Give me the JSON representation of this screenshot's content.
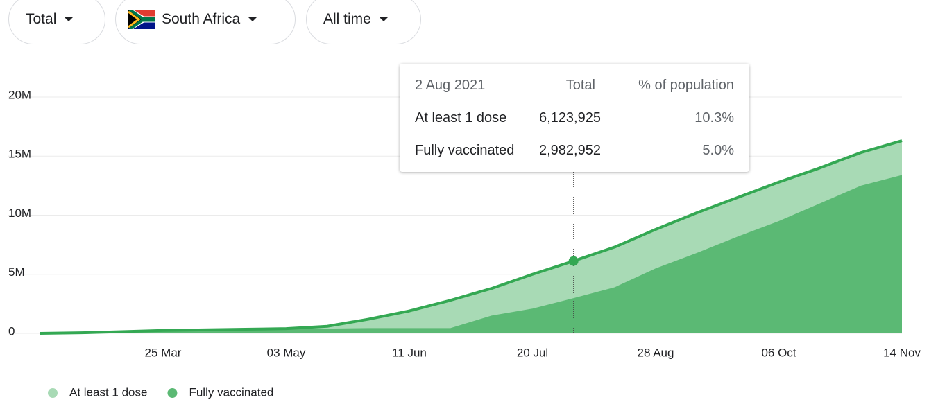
{
  "filters": [
    "Total",
    "South Africa",
    "All time"
  ],
  "chart_data": {
    "type": "area",
    "categories": [
      null,
      null,
      null,
      "25 Mar",
      null,
      null,
      "03 May",
      null,
      null,
      "11 Jun",
      null,
      null,
      "20 Jul",
      null,
      null,
      "28 Aug",
      null,
      null,
      "06 Oct",
      null,
      null,
      "14 Nov"
    ],
    "series": [
      {
        "name": "At least 1 dose",
        "color": "#a8dab5",
        "line_color": "#34a853",
        "values": [
          0,
          50000,
          150000,
          250000,
          300000,
          350000,
          400000,
          600000,
          1200000,
          1900000,
          2800000,
          3800000,
          5000000,
          6123925,
          7300000,
          8800000,
          10200000,
          11500000,
          12800000,
          14000000,
          15300000,
          16300000
        ],
        "value_labels": {
          "13": "6,123,925"
        }
      },
      {
        "name": "Fully vaccinated",
        "color": "#5bb974",
        "values": [
          0,
          50000,
          150000,
          250000,
          300000,
          350000,
          400000,
          400000,
          450000,
          450000,
          450000,
          1500000,
          2100000,
          2982952,
          3900000,
          5500000,
          6800000,
          8200000,
          9500000,
          11000000,
          12500000,
          13400000
        ],
        "value_labels": {
          "13": "2,982,952"
        }
      }
    ],
    "ylim": [
      0,
      20000000
    ],
    "yticks": [
      {
        "value": 0,
        "label": "0"
      },
      {
        "value": 5000000,
        "label": "5M"
      },
      {
        "value": 10000000,
        "label": "10M"
      },
      {
        "value": 15000000,
        "label": "15M"
      },
      {
        "value": 20000000,
        "label": "20M"
      }
    ],
    "grid": true,
    "legend": "bottom-left",
    "tooltip": {
      "index": 13,
      "date": "2 Aug 2021",
      "headers": [
        "Total",
        "% of population"
      ],
      "percent": [
        {
          "value": 10.3,
          "label": "10.3%"
        },
        {
          "value": 5,
          "label": "5.0%"
        }
      ]
    }
  }
}
